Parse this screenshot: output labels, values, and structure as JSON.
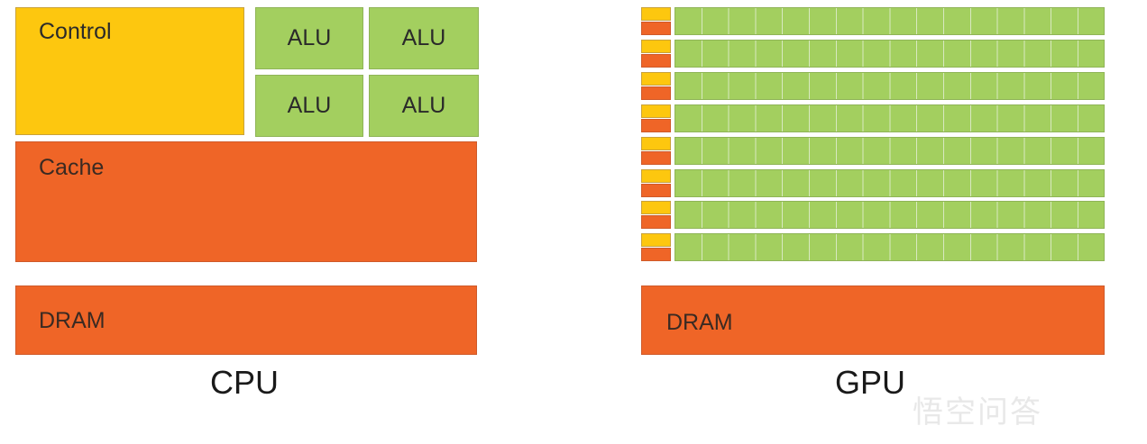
{
  "cpu": {
    "caption": "CPU",
    "control_label": "Control",
    "alu_labels": [
      "ALU",
      "ALU",
      "ALU",
      "ALU"
    ],
    "cache_label": "Cache",
    "dram_label": "DRAM"
  },
  "gpu": {
    "caption": "GPU",
    "rows": 8,
    "cores_per_row": 16,
    "dram_label": "DRAM"
  },
  "watermark": {
    "text": "悟空问答"
  },
  "colors": {
    "control": "#fdc70f",
    "alu": "#a3cf5f",
    "cache": "#ef6527",
    "dram": "#ef6527"
  }
}
